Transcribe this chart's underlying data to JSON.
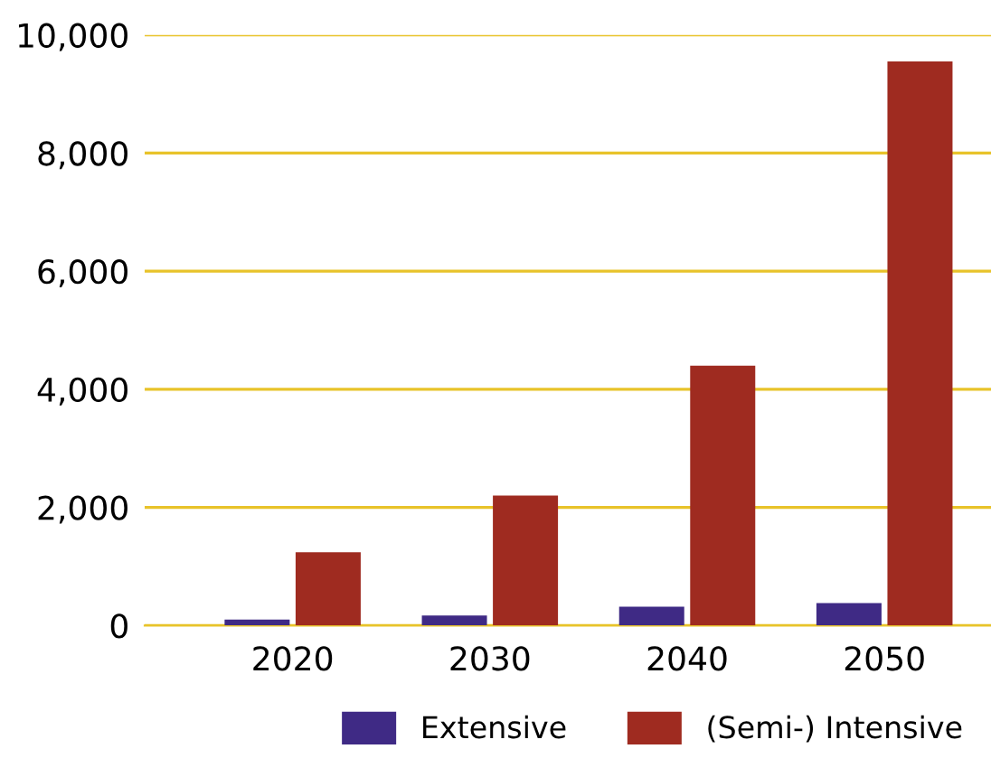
{
  "chart_data": {
    "type": "bar",
    "categories": [
      "2020",
      "2030",
      "2040",
      "2050"
    ],
    "series": [
      {
        "name": "Extensive",
        "color": "#3f2a85",
        "values": [
          100,
          170,
          320,
          380
        ]
      },
      {
        "name": "(Semi-) Intensive",
        "color": "#9f2b20",
        "values": [
          1240,
          2200,
          4400,
          9550
        ]
      }
    ],
    "ylim": [
      0,
      10000
    ],
    "yticks": [
      {
        "value": 0,
        "label": "0"
      },
      {
        "value": 2000,
        "label": "2,000"
      },
      {
        "value": 4000,
        "label": "4,000"
      },
      {
        "value": 6000,
        "label": "6,000"
      },
      {
        "value": 8000,
        "label": "8,000"
      },
      {
        "value": 10000,
        "label": "10,000"
      }
    ],
    "grid": "y",
    "legend": "bottom"
  }
}
